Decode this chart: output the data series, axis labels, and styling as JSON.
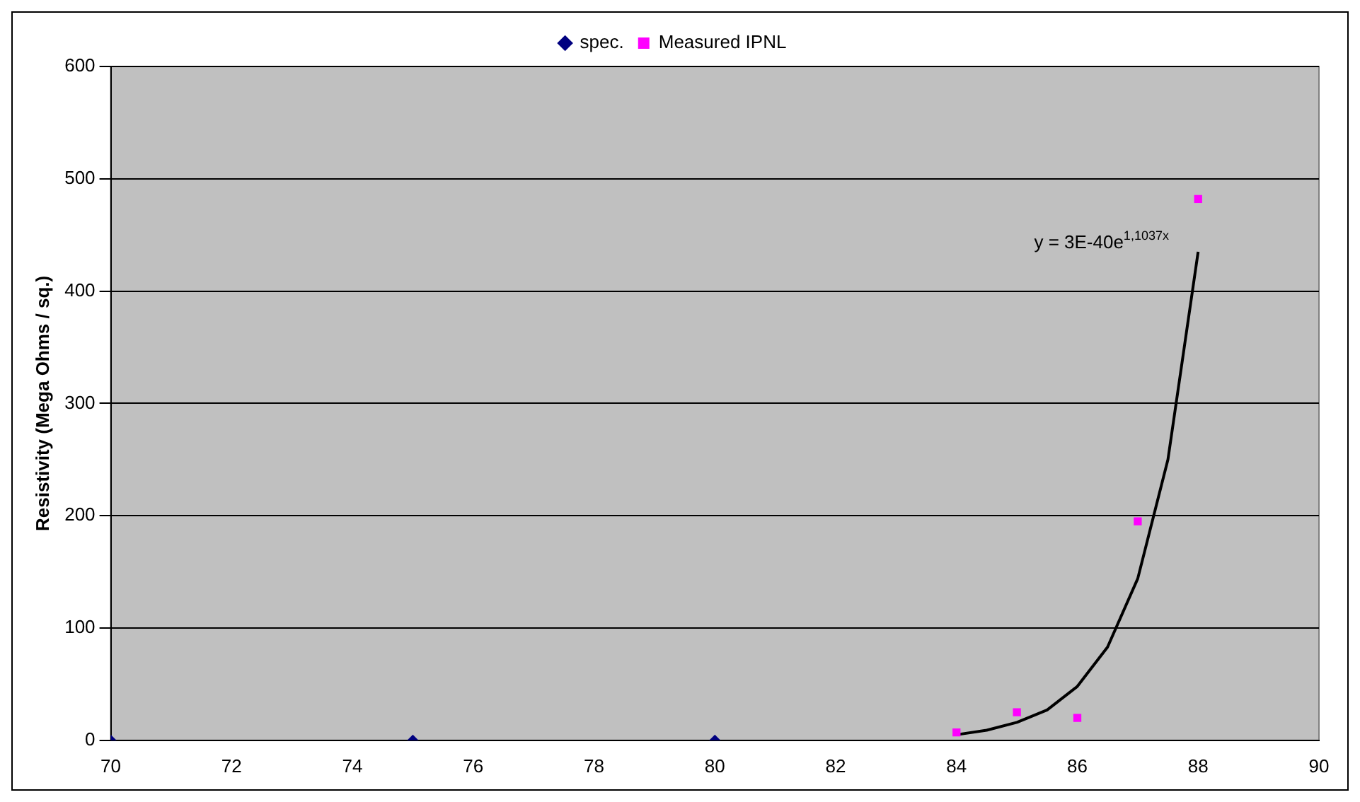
{
  "chart_data": {
    "type": "scatter",
    "ylabel": "Resistivity (Mega Ohms / sq.)",
    "xlim": [
      70,
      90
    ],
    "xticks": [
      70,
      72,
      74,
      76,
      78,
      80,
      82,
      84,
      86,
      88,
      90
    ],
    "ylim": [
      0,
      600
    ],
    "yticks": [
      0,
      100,
      200,
      300,
      400,
      500,
      600
    ],
    "grid": "y",
    "legend": "top",
    "series": [
      {
        "name": "spec.",
        "color": "#000080",
        "marker": "diamond",
        "x": [
          70,
          75,
          80
        ],
        "values": [
          0,
          0,
          0
        ]
      },
      {
        "name": "Measured IPNL",
        "color": "#ff00ff",
        "marker": "square",
        "x": [
          84,
          85,
          86,
          87,
          88
        ],
        "values": [
          7,
          25,
          20,
          195,
          482
        ]
      },
      {
        "type": "line",
        "color": "#000000",
        "marker": "none",
        "line_style": "solid",
        "x": [
          84,
          84.5,
          85,
          85.5,
          86,
          86.5,
          87,
          87.5,
          88
        ],
        "values": [
          5,
          9,
          16,
          27,
          48,
          83,
          144,
          250,
          435
        ]
      }
    ],
    "annotations": [
      "y = 3E-40e$^{1,1037x}$"
    ]
  }
}
